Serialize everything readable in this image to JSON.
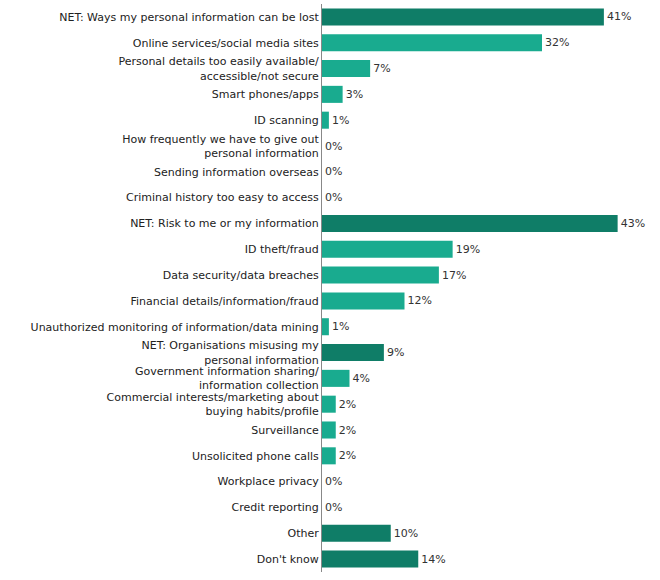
{
  "chart_data": {
    "type": "bar",
    "orientation": "horizontal",
    "categories": [
      "NET: Ways my personal information can be lost",
      "Online services/social media sites",
      "Personal details too easily available/\naccessible/not secure",
      "Smart phones/apps",
      "ID scanning",
      "How frequently we have to give out\npersonal information",
      "Sending information overseas",
      "Criminal history too easy to access",
      "NET: Risk to me or my information",
      "ID theft/fraud",
      "Data security/data breaches",
      "Financial details/information/fraud",
      "Unauthorized monitoring of information/data mining",
      "NET: Organisations misusing my\npersonal information",
      "Government information sharing/\ninformation collection",
      "Commercial interests/marketing about\nbuying habits/profile",
      "Surveillance",
      "Unsolicited phone calls",
      "Workplace privacy",
      "Credit reporting",
      "Other",
      "Don't know"
    ],
    "values": [
      41,
      32,
      7,
      3,
      1,
      0,
      0,
      0,
      43,
      19,
      17,
      12,
      1,
      9,
      4,
      2,
      2,
      2,
      0,
      0,
      10,
      14
    ],
    "value_labels": [
      "41%",
      "32%",
      "7%",
      "3%",
      "1%",
      "0%",
      "0%",
      "0%",
      "43%",
      "19%",
      "17%",
      "12%",
      "1%",
      "9%",
      "4%",
      "2%",
      "2%",
      "2%",
      "0%",
      "0%",
      "10%",
      "14%"
    ],
    "colors": [
      "#0f7d67",
      "#19ab8f",
      "#19ab8f",
      "#19ab8f",
      "#19ab8f",
      "#19ab8f",
      "#19ab8f",
      "#19ab8f",
      "#0f7d67",
      "#19ab8f",
      "#19ab8f",
      "#19ab8f",
      "#19ab8f",
      "#0f7d67",
      "#19ab8f",
      "#19ab8f",
      "#19ab8f",
      "#19ab8f",
      "#19ab8f",
      "#19ab8f",
      "#0f7d67",
      "#0f7d67"
    ],
    "xlim": [
      0,
      48
    ],
    "data_labels": true,
    "tick_labels": "y",
    "grid": false
  }
}
